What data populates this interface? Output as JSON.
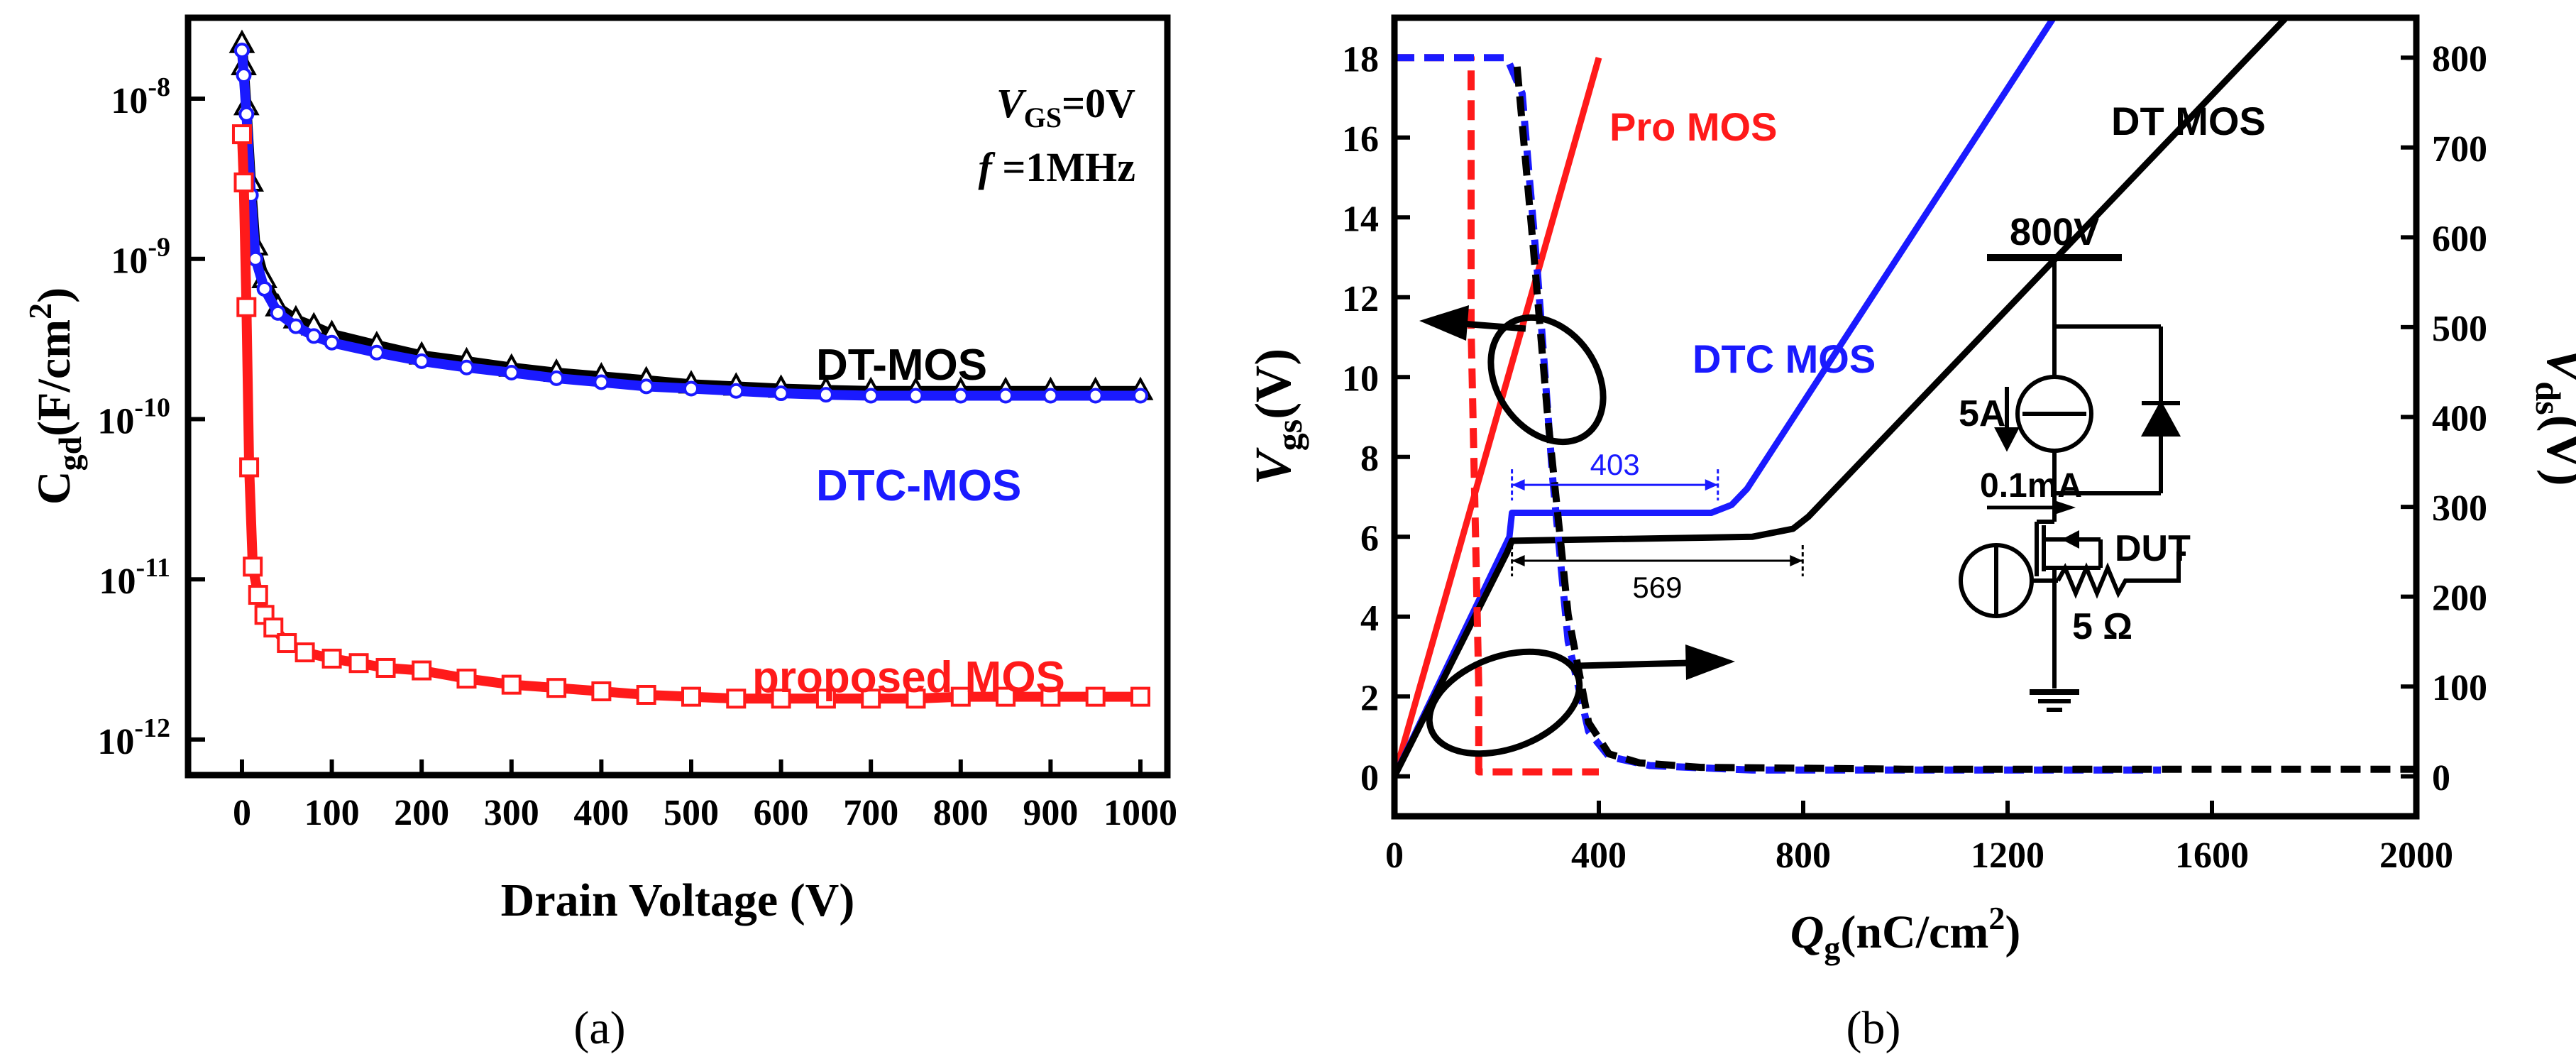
{
  "chart_data": [
    {
      "panel": "a",
      "type": "scatter",
      "caption": "(a)",
      "xlabel": "Drain Voltage (V)",
      "ylabel": {
        "base": "C",
        "sub": "gd",
        "rest": "(F/cm",
        "sup": "2",
        "close": ")"
      },
      "xlim": [
        -60,
        1030
      ],
      "ylim": [
        6e-13,
        3.2e-08
      ],
      "yscale": "log",
      "xticks": [
        0,
        100,
        200,
        300,
        400,
        500,
        600,
        700,
        800,
        900,
        1000
      ],
      "xtick_labels": [
        "0",
        "100",
        "200",
        "300",
        "400",
        "500",
        "600",
        "700",
        "800",
        "900",
        "1000"
      ],
      "yticks": [
        1e-12,
        1e-11,
        1e-10,
        1e-09,
        1e-08
      ],
      "ytick_labels": [
        {
          "base": "10",
          "exp": "-12"
        },
        {
          "base": "10",
          "exp": "-11"
        },
        {
          "base": "10",
          "exp": "-10"
        },
        {
          "base": "10",
          "exp": "-9"
        },
        {
          "base": "10",
          "exp": "-8"
        }
      ],
      "annotations": {
        "vgs": {
          "italic": "V",
          "sub": "GS",
          "rest": "=0V"
        },
        "freq": {
          "italic": "f",
          "rest": " =1MHz"
        }
      },
      "series": [
        {
          "name": "DT-MOS",
          "color": "#000000",
          "marker": "triangle",
          "x": [
            0,
            2,
            5,
            10,
            15,
            25,
            40,
            60,
            80,
            100,
            150,
            200,
            250,
            300,
            350,
            400,
            450,
            500,
            550,
            600,
            650,
            700,
            750,
            800,
            850,
            900,
            950,
            1000
          ],
          "y": [
            2.2e-08,
            1.6e-08,
            9e-09,
            3e-09,
            1.2e-09,
            7.5e-10,
            5e-10,
            4.2e-10,
            3.8e-10,
            3.4e-10,
            2.9e-10,
            2.5e-10,
            2.3e-10,
            2.1e-10,
            1.95e-10,
            1.85e-10,
            1.75e-10,
            1.65e-10,
            1.6e-10,
            1.55e-10,
            1.52e-10,
            1.5e-10,
            1.5e-10,
            1.5e-10,
            1.5e-10,
            1.5e-10,
            1.5e-10,
            1.5e-10
          ]
        },
        {
          "name": "DTC-MOS",
          "color": "#1a1aff",
          "marker": "circle",
          "x": [
            0,
            2,
            5,
            10,
            15,
            25,
            40,
            60,
            80,
            100,
            150,
            200,
            250,
            300,
            350,
            400,
            450,
            500,
            550,
            600,
            650,
            700,
            750,
            800,
            850,
            900,
            950,
            1000
          ],
          "y": [
            2e-08,
            1.4e-08,
            8e-09,
            2.5e-09,
            1e-09,
            6.5e-10,
            4.6e-10,
            3.8e-10,
            3.3e-10,
            3e-10,
            2.6e-10,
            2.3e-10,
            2.1e-10,
            1.95e-10,
            1.8e-10,
            1.7e-10,
            1.6e-10,
            1.55e-10,
            1.5e-10,
            1.45e-10,
            1.42e-10,
            1.4e-10,
            1.4e-10,
            1.4e-10,
            1.4e-10,
            1.4e-10,
            1.4e-10,
            1.4e-10
          ]
        },
        {
          "name": "proposed MOS",
          "color": "#ff1a1a",
          "marker": "square",
          "x": [
            0,
            2,
            5,
            8,
            12,
            18,
            25,
            35,
            50,
            70,
            100,
            130,
            160,
            200,
            250,
            300,
            350,
            400,
            450,
            500,
            550,
            600,
            650,
            700,
            750,
            800,
            850,
            900,
            950,
            1000
          ],
          "y": [
            6e-09,
            3e-09,
            5e-10,
            5e-11,
            1.2e-11,
            8e-12,
            6e-12,
            5e-12,
            4e-12,
            3.5e-12,
            3.2e-12,
            3e-12,
            2.8e-12,
            2.7e-12,
            2.4e-12,
            2.2e-12,
            2.1e-12,
            2e-12,
            1.9e-12,
            1.85e-12,
            1.8e-12,
            1.8e-12,
            1.8e-12,
            1.8e-12,
            1.8e-12,
            1.85e-12,
            1.85e-12,
            1.85e-12,
            1.85e-12,
            1.85e-12
          ]
        }
      ],
      "labels": [
        "DT-MOS",
        "DTC-MOS",
        "proposed MOS"
      ]
    },
    {
      "panel": "b",
      "type": "line",
      "caption": "(b)",
      "xlabel": {
        "italic": "Q",
        "sub": "g",
        "rest": "(nC/cm",
        "sup": "2",
        "close": ")"
      },
      "ylabel": {
        "italic": "V",
        "sub": "gs",
        "rest": "(V)"
      },
      "y2label": {
        "italic": "V",
        "sub": "ds",
        "rest": "(V)"
      },
      "xlim": [
        0,
        2000
      ],
      "ylim": [
        -1,
        19
      ],
      "y2lim": [
        -44.4,
        844.4
      ],
      "xticks": [
        0,
        400,
        800,
        1200,
        1600,
        2000
      ],
      "xtick_labels": [
        "0",
        "400",
        "800",
        "1200",
        "1600",
        "2000"
      ],
      "yticks": [
        0,
        2,
        4,
        6,
        8,
        10,
        12,
        14,
        16,
        18
      ],
      "ytick_labels": [
        "0",
        "2",
        "4",
        "6",
        "8",
        "10",
        "12",
        "14",
        "16",
        "18"
      ],
      "y2ticks": [
        0,
        100,
        200,
        300,
        400,
        500,
        600,
        700,
        800
      ],
      "y2tick_labels": [
        "0",
        "100",
        "200",
        "300",
        "400",
        "500",
        "600",
        "700",
        "800"
      ],
      "series": [
        {
          "name": "Pro MOS",
          "color": "#ff1a1a",
          "style": "solid",
          "axis": "left",
          "x": [
            0,
            400
          ],
          "y": [
            0,
            18
          ]
        },
        {
          "name": "DTC MOS",
          "color": "#1a1aff",
          "style": "solid",
          "axis": "left",
          "x": [
            0,
            225,
            230,
            620,
            660,
            690,
            1290
          ],
          "y": [
            0,
            6,
            6.6,
            6.6,
            6.8,
            7.2,
            19
          ]
        },
        {
          "name": "DT MOS",
          "color": "#000000",
          "style": "solid",
          "axis": "left",
          "x": [
            0,
            220,
            230,
            700,
            780,
            810,
            1745
          ],
          "y": [
            0,
            5.6,
            5.9,
            6,
            6.2,
            6.5,
            19
          ]
        },
        {
          "name": "Pro MOS Vds",
          "color": "#ff1a1a",
          "style": "dashed",
          "axis": "right",
          "x": [
            0,
            150,
            150,
            165,
            165,
            400
          ],
          "y": [
            800,
            800,
            500,
            100,
            5,
            5
          ]
        },
        {
          "name": "DTC MOS Vds",
          "color": "#1a1aff",
          "style": "dashed",
          "axis": "right",
          "x": [
            0,
            220,
            250,
            280,
            310,
            340,
            380,
            420,
            500,
            700,
            1000,
            1500
          ],
          "y": [
            800,
            800,
            760,
            560,
            330,
            150,
            50,
            22,
            12,
            7,
            7,
            7
          ]
        },
        {
          "name": "DT MOS Vds",
          "color": "#000000",
          "style": "dashed",
          "axis": "right",
          "x": [
            240,
            270,
            300,
            340,
            380,
            420,
            480,
            600,
            1000,
            2000
          ],
          "y": [
            790,
            600,
            400,
            180,
            60,
            25,
            15,
            10,
            8,
            8
          ]
        }
      ],
      "labels": {
        "pro": "Pro MOS",
        "dtc": "DTC MOS",
        "dt": "DT MOS"
      },
      "plateau_annotations": [
        {
          "label": "403",
          "color": "#1a1aff",
          "x_start": 230,
          "x_end": 633,
          "y": 7.3
        },
        {
          "label": "569",
          "color": "#000000",
          "x_start": 230,
          "x_end": 799,
          "y": 5.4
        }
      ],
      "circuit": {
        "supply": "800V",
        "current_source": "5A",
        "gate_current": "0.1mA",
        "gate_resistor": {
          "value": "5",
          "unit": "Ω"
        },
        "dut": "DUT"
      }
    }
  ]
}
